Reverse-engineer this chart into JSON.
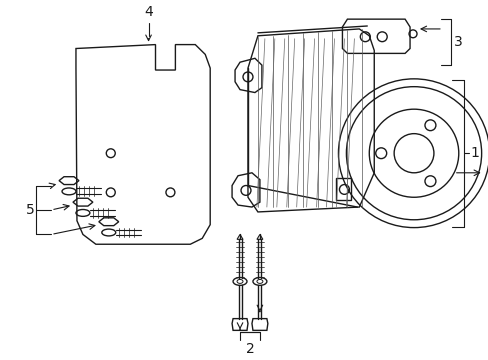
{
  "bg_color": "#ffffff",
  "line_color": "#1a1a1a",
  "fig_width": 4.89,
  "fig_height": 3.6,
  "dpi": 100,
  "label_4": "4",
  "label_3": "3",
  "label_1": "1",
  "label_2": "2",
  "label_5": "5"
}
